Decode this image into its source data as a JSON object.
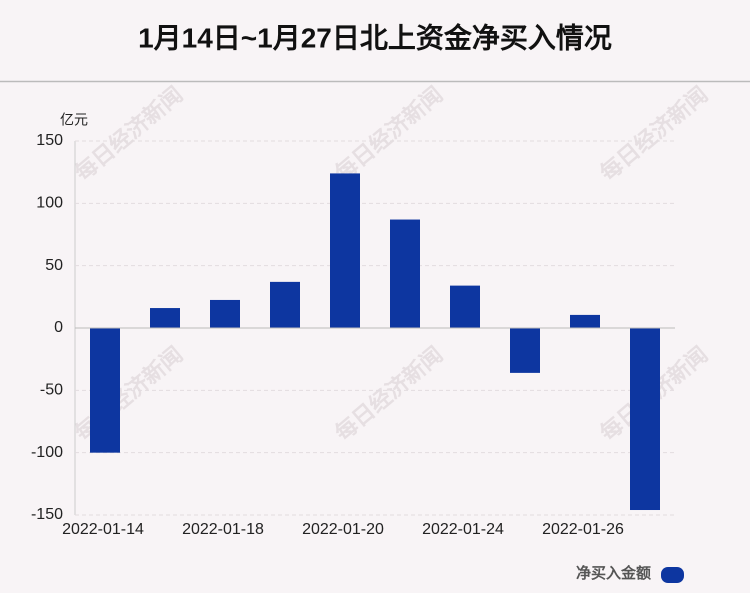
{
  "chart_data": {
    "type": "bar",
    "title": "1月14日~1月27日北上资金净买入情况",
    "y_label": "亿元",
    "watermark": "每日经济新闻",
    "categories": [
      "2022-01-14",
      null,
      "2022-01-18",
      null,
      "2022-01-20",
      null,
      "2022-01-24",
      null,
      "2022-01-26",
      null
    ],
    "series": [
      {
        "name": "净买入金额",
        "color": "#0d36a0",
        "values": [
          -100,
          16,
          22.5,
          37,
          124,
          87,
          34,
          -36,
          10.5,
          -146
        ]
      }
    ],
    "ylim": [
      -150,
      150
    ],
    "yticks": [
      -150,
      -100,
      -50,
      0,
      50,
      100,
      150
    ],
    "grid": true
  }
}
